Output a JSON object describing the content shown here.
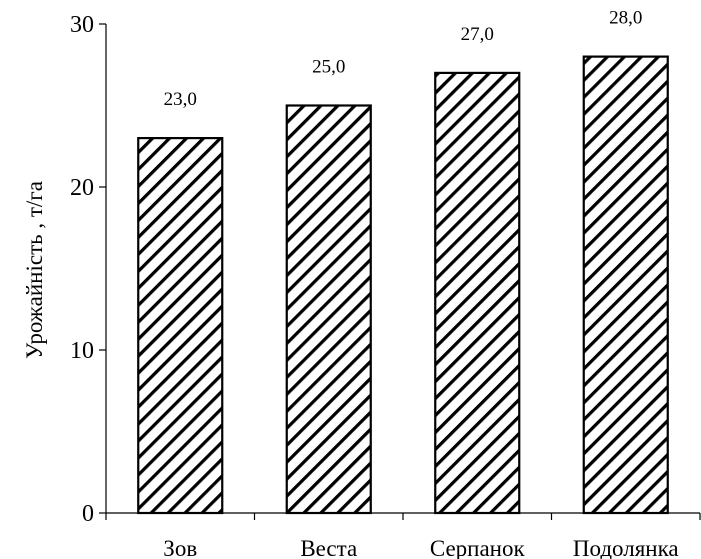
{
  "chart_data": {
    "type": "bar",
    "title": "",
    "xlabel": "",
    "ylabel": "Урожайність , т/га",
    "categories": [
      "Зов",
      "Веста",
      "Серпанок",
      "Подолянка"
    ],
    "values": [
      23.0,
      25.0,
      27.0,
      28.0
    ],
    "data_labels": [
      "23,0",
      "25,0",
      "27,0",
      "28,0"
    ],
    "ylim": [
      0,
      30
    ],
    "yticks": [
      0,
      10,
      20,
      30
    ],
    "ytick_labels": [
      "0",
      "10",
      "20",
      "30"
    ],
    "grid": false,
    "legend": "none",
    "bar_fill": "diagonal-hatch",
    "colors": {
      "bar_outline": "#000000",
      "hatch": "#000000",
      "background": "#ffffff"
    }
  }
}
